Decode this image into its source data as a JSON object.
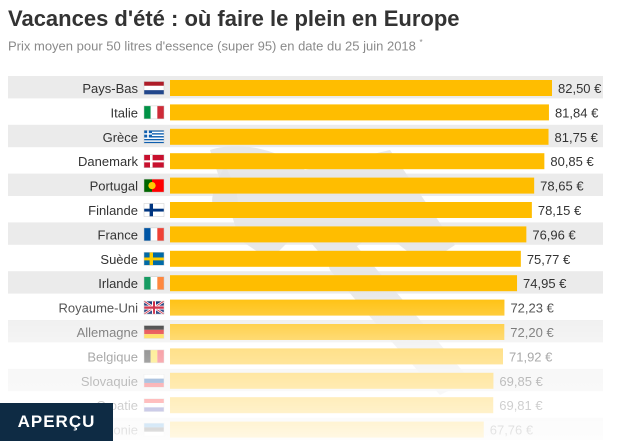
{
  "header": {
    "title": "Vacances d'été : où faire le plein en Europe",
    "subtitle": "Prix moyen pour 50 litres d'essence (super 95) en date du 25 juin 2018",
    "subtitle_mark": "*"
  },
  "badge": {
    "label": "APERÇU"
  },
  "colors": {
    "bar": "#ffbd00",
    "stripe": "#ebebeb",
    "text": "#333333",
    "watermark": "#ececec"
  },
  "chart_data": {
    "type": "bar",
    "orientation": "horizontal",
    "title": "Vacances d'été : où faire le plein en Europe",
    "unit": "€",
    "categories": [
      "Pays-Bas",
      "Italie",
      "Grèce",
      "Danemark",
      "Portugal",
      "Finlande",
      "France",
      "Suède",
      "Irlande",
      "Royaume-Uni",
      "Allemagne",
      "Belgique",
      "Slovaquie",
      "Croatie",
      "Estonie"
    ],
    "values": [
      82.5,
      81.84,
      81.75,
      80.85,
      78.65,
      78.15,
      76.96,
      75.77,
      74.95,
      72.23,
      72.2,
      71.92,
      69.85,
      69.81,
      67.76
    ],
    "labels": [
      "82,50 €",
      "81,84 €",
      "81,75 €",
      "80,85 €",
      "78,65 €",
      "78,15 €",
      "76,96 €",
      "75,77 €",
      "74,95 €",
      "72,23 €",
      "72,20 €",
      "71,92 €",
      "69,85 €",
      "69,81 €",
      "67,76 €"
    ],
    "flags": [
      "nl",
      "it",
      "gr",
      "dk",
      "pt",
      "fi",
      "fr",
      "se",
      "ie",
      "gb",
      "de",
      "be",
      "sk",
      "hr",
      "ee"
    ],
    "xlim": [
      0,
      82.5
    ]
  }
}
